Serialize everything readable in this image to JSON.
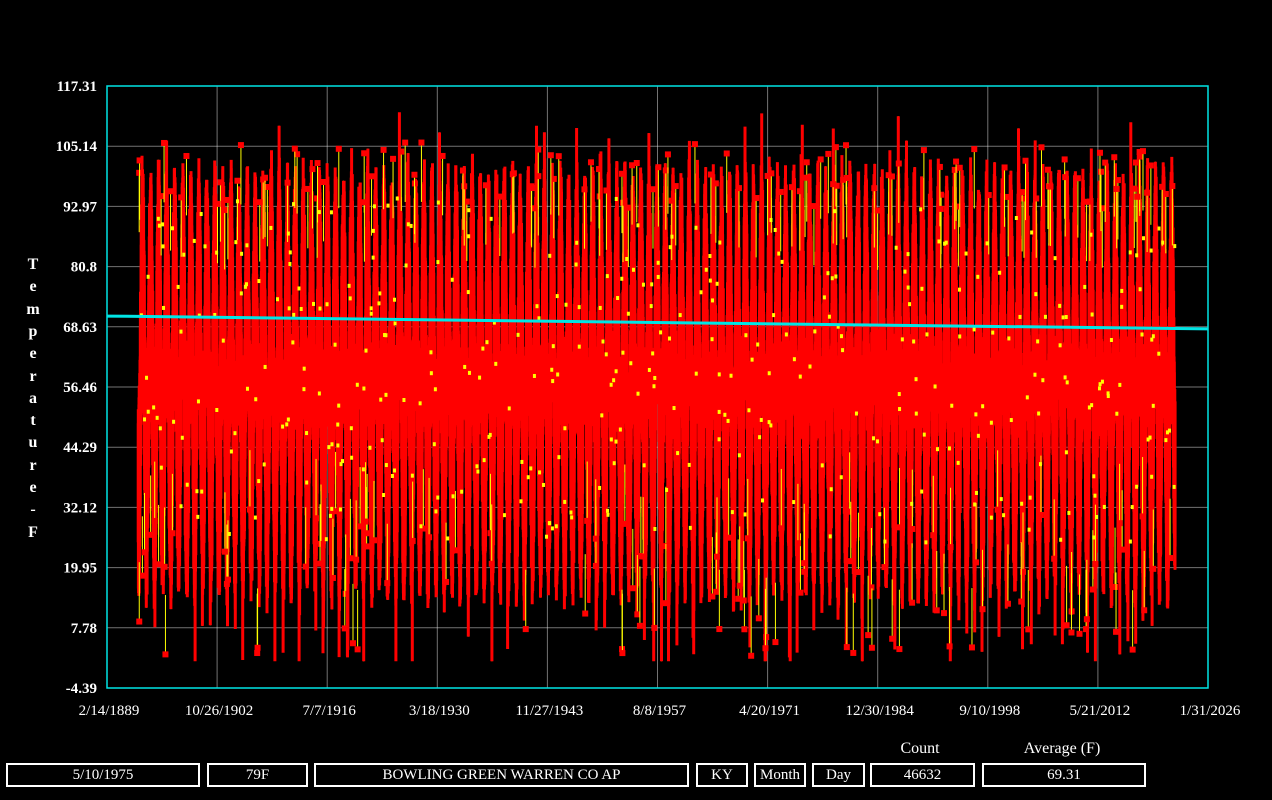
{
  "chart_data": {
    "type": "scatter",
    "ylabel": "Temperature-F",
    "yticks": [
      "117.31",
      "105.14",
      "92.97",
      "80.8",
      "68.63",
      "56.46",
      "44.29",
      "32.12",
      "19.95",
      "7.78",
      "-4.39"
    ],
    "ylim": [
      -4.39,
      117.31
    ],
    "xticks": [
      "2/14/1889",
      "10/26/1902",
      "7/7/1916",
      "3/18/1930",
      "11/27/1943",
      "8/8/1957",
      "4/20/1971",
      "12/30/1984",
      "9/10/1998",
      "5/21/2012",
      "1/31/2026"
    ],
    "xlim": [
      "1889-02-14",
      "2026-01-31"
    ],
    "data_range": [
      "1893-01-01",
      "2022-01-01"
    ],
    "trend": {
      "start": 70.8,
      "end": 68.2
    },
    "colors": {
      "points": "#ff0000",
      "connectors": "#ffff00",
      "trend": "#00e5e5",
      "frame": "#00e5e5",
      "grid": "#ffffff"
    },
    "grid": true
  },
  "footer": {
    "date": "5/10/1975",
    "temp": "79F",
    "station": "BOWLING GREEN WARREN CO AP",
    "state": "KY",
    "month_button": "Month",
    "day_button": "Day",
    "count_label": "Count",
    "count_value": "46632",
    "average_label": "Average (F)",
    "average_value": "69.31"
  }
}
